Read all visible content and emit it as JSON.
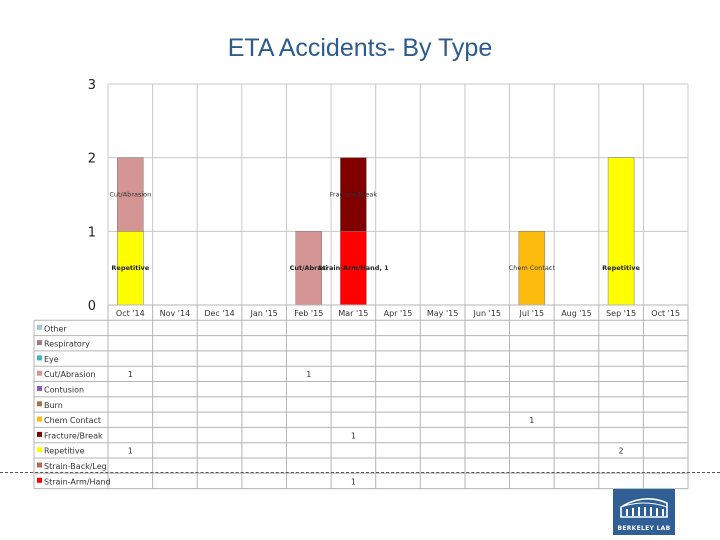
{
  "title": "ETA Accidents- By Type",
  "logo": {
    "text": "BERKELEY LAB",
    "color": "#2f5f95"
  },
  "chart_data": {
    "type": "bar",
    "stacked": true,
    "ylim": [
      0,
      3
    ],
    "yticks": [
      "0",
      "1",
      "2",
      "3"
    ],
    "categories": [
      "Oct '14",
      "Nov '14",
      "Dec '14",
      "Jan '15",
      "Feb '15",
      "Mar '15",
      "Apr '15",
      "May '15",
      "Jun '15",
      "Jul '15",
      "Aug '15",
      "Sep '15",
      "Oct '15"
    ],
    "series": [
      {
        "name": "Other",
        "color": "#9fc7d1",
        "values": [
          0,
          0,
          0,
          0,
          0,
          0,
          0,
          0,
          0,
          0,
          0,
          0,
          0
        ]
      },
      {
        "name": "Respiratory",
        "color": "#a07a8a",
        "values": [
          0,
          0,
          0,
          0,
          0,
          0,
          0,
          0,
          0,
          0,
          0,
          0,
          0
        ]
      },
      {
        "name": "Eye",
        "color": "#3fb6c6",
        "values": [
          0,
          0,
          0,
          0,
          0,
          0,
          0,
          0,
          0,
          0,
          0,
          0,
          0
        ]
      },
      {
        "name": "Cut/Abrasion",
        "color": "#d59595",
        "values": [
          1,
          0,
          0,
          0,
          1,
          0,
          0,
          0,
          0,
          0,
          0,
          0,
          0
        ]
      },
      {
        "name": "Contusion",
        "color": "#8a5bb5",
        "values": [
          0,
          0,
          0,
          0,
          0,
          0,
          0,
          0,
          0,
          0,
          0,
          0,
          0
        ]
      },
      {
        "name": "Burn",
        "color": "#a5744a",
        "values": [
          0,
          0,
          0,
          0,
          0,
          0,
          0,
          0,
          0,
          0,
          0,
          0,
          0
        ]
      },
      {
        "name": "Chem Contact",
        "color": "#fdbb0e",
        "values": [
          0,
          0,
          0,
          0,
          0,
          0,
          0,
          0,
          0,
          1,
          0,
          0,
          0
        ]
      },
      {
        "name": "Fracture/Break",
        "color": "#800000",
        "values": [
          0,
          0,
          0,
          0,
          0,
          1,
          0,
          0,
          0,
          0,
          0,
          0,
          0
        ]
      },
      {
        "name": "Repetitive",
        "color": "#ffff00",
        "values": [
          1,
          0,
          0,
          0,
          0,
          0,
          0,
          0,
          0,
          0,
          0,
          2,
          0
        ]
      },
      {
        "name": "Strain-Back/Leg",
        "color": "#b56a5a",
        "values": [
          0,
          0,
          0,
          0,
          0,
          0,
          0,
          0,
          0,
          0,
          0,
          0,
          0
        ]
      },
      {
        "name": "Strain-Arm/Hand",
        "color": "#ff0000",
        "values": [
          0,
          0,
          0,
          0,
          0,
          1,
          0,
          0,
          0,
          0,
          0,
          0,
          0
        ]
      }
    ],
    "bar_labels": [
      {
        "category": 0,
        "series": "Repetitive",
        "text": "Repetitive"
      },
      {
        "category": 0,
        "series": "Cut/Abrasion",
        "text": "Cut/Abrasion"
      },
      {
        "category": 4,
        "series": "Cut/Abrasion",
        "text": "Cut/Abrasi"
      },
      {
        "category": 5,
        "series": "Strain-Arm/Hand",
        "text": "Strain-Arm/Hand, 1"
      },
      {
        "category": 5,
        "series": "Fracture/Break",
        "text": "Fracture/Break"
      },
      {
        "category": 9,
        "series": "Chem Contact",
        "text": "Chem Contact"
      },
      {
        "category": 11,
        "series": "Repetitive",
        "text": "Repetitive"
      }
    ],
    "data_table": true,
    "grid": true
  }
}
